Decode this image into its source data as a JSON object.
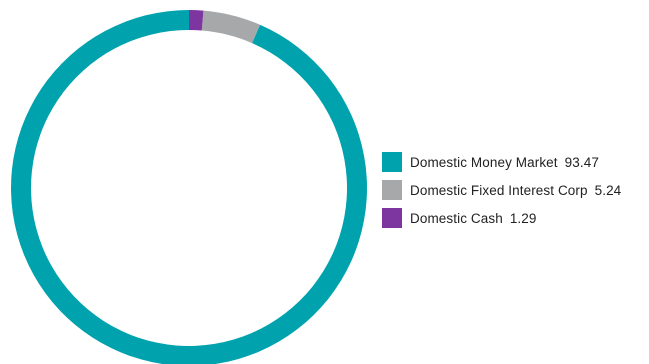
{
  "chart_data": {
    "type": "pie",
    "variant": "donut",
    "title": "",
    "legend_position": "right",
    "slices": [
      {
        "label": "Domestic Money Market",
        "value": 93.47,
        "value_label": "93.47",
        "color": "#00a3ad"
      },
      {
        "label": "Domestic Fixed Interest Corp",
        "value": 5.24,
        "value_label": "5.24",
        "color": "#a7a8aa"
      },
      {
        "label": "Domestic Cash",
        "value": 1.29,
        "value_label": "1.29",
        "color": "#7d35a0"
      }
    ]
  }
}
